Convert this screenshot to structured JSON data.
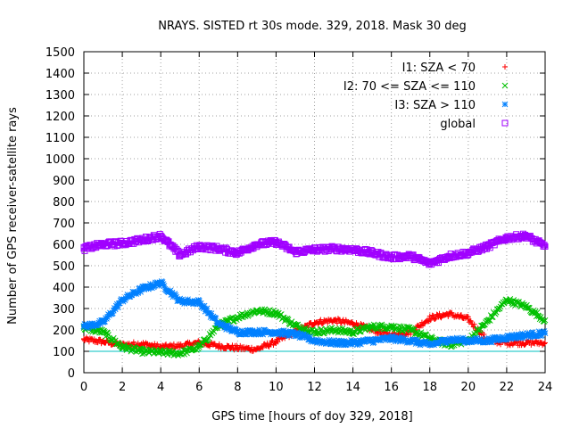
{
  "chart_data": {
    "type": "scatter",
    "title": "NRAYS. SISTED rt 30s mode. 329, 2018. Mask 30 deg",
    "xlabel": "GPS time [hours of doy 329, 2018]",
    "ylabel": "Number of GPS receiver-satellite rays",
    "xlim": [
      0,
      24
    ],
    "ylim": [
      0,
      1500
    ],
    "xticks": [
      0,
      2,
      4,
      6,
      8,
      10,
      12,
      14,
      16,
      18,
      20,
      22,
      24
    ],
    "yticks": [
      0,
      100,
      200,
      300,
      400,
      500,
      600,
      700,
      800,
      900,
      1000,
      1100,
      1200,
      1300,
      1400,
      1500
    ],
    "grid": true,
    "legend_position": "top-right",
    "reference_line": {
      "y": 100,
      "color": "#00c0c0"
    },
    "series": [
      {
        "name": "I1: SZA < 70",
        "marker": "+",
        "color": "#ff0000",
        "x": [
          0,
          1,
          2,
          3,
          4,
          5,
          6,
          7,
          8,
          9,
          10,
          11,
          12,
          13,
          14,
          15,
          16,
          17,
          18,
          19,
          20,
          21,
          22,
          23,
          24
        ],
        "y": [
          155,
          145,
          130,
          135,
          120,
          125,
          140,
          125,
          115,
          110,
          145,
          190,
          235,
          245,
          230,
          200,
          175,
          190,
          255,
          275,
          250,
          150,
          140,
          140,
          140
        ]
      },
      {
        "name": "I2: 70 <= SZA <= 110",
        "marker": "x",
        "color": "#00c000",
        "x": [
          0,
          1,
          2,
          3,
          4,
          5,
          6,
          7,
          8,
          9,
          10,
          11,
          12,
          13,
          14,
          15,
          16,
          17,
          18,
          19,
          20,
          21,
          22,
          23,
          24
        ],
        "y": [
          210,
          190,
          120,
          100,
          95,
          90,
          120,
          220,
          260,
          290,
          280,
          220,
          190,
          200,
          190,
          215,
          215,
          200,
          160,
          130,
          150,
          240,
          340,
          310,
          245
        ]
      },
      {
        "name": "I3: SZA > 110",
        "marker": "*",
        "color": "#0080ff",
        "x": [
          0,
          1,
          2,
          3,
          4,
          5,
          6,
          7,
          8,
          9,
          10,
          11,
          12,
          13,
          14,
          15,
          16,
          17,
          18,
          19,
          20,
          21,
          22,
          23,
          24
        ],
        "y": [
          215,
          235,
          340,
          390,
          420,
          335,
          330,
          230,
          190,
          190,
          190,
          180,
          150,
          140,
          140,
          150,
          160,
          150,
          130,
          155,
          150,
          150,
          165,
          175,
          185
        ]
      },
      {
        "name": "global",
        "marker": "square",
        "color": "#a000ff",
        "x": [
          0,
          1,
          2,
          3,
          4,
          5,
          6,
          7,
          8,
          9,
          10,
          11,
          12,
          13,
          14,
          15,
          16,
          17,
          18,
          19,
          20,
          21,
          22,
          23,
          24
        ],
        "y": [
          580,
          600,
          605,
          620,
          640,
          550,
          590,
          580,
          560,
          600,
          610,
          565,
          575,
          580,
          575,
          560,
          540,
          545,
          510,
          545,
          560,
          590,
          630,
          640,
          590
        ]
      }
    ]
  }
}
